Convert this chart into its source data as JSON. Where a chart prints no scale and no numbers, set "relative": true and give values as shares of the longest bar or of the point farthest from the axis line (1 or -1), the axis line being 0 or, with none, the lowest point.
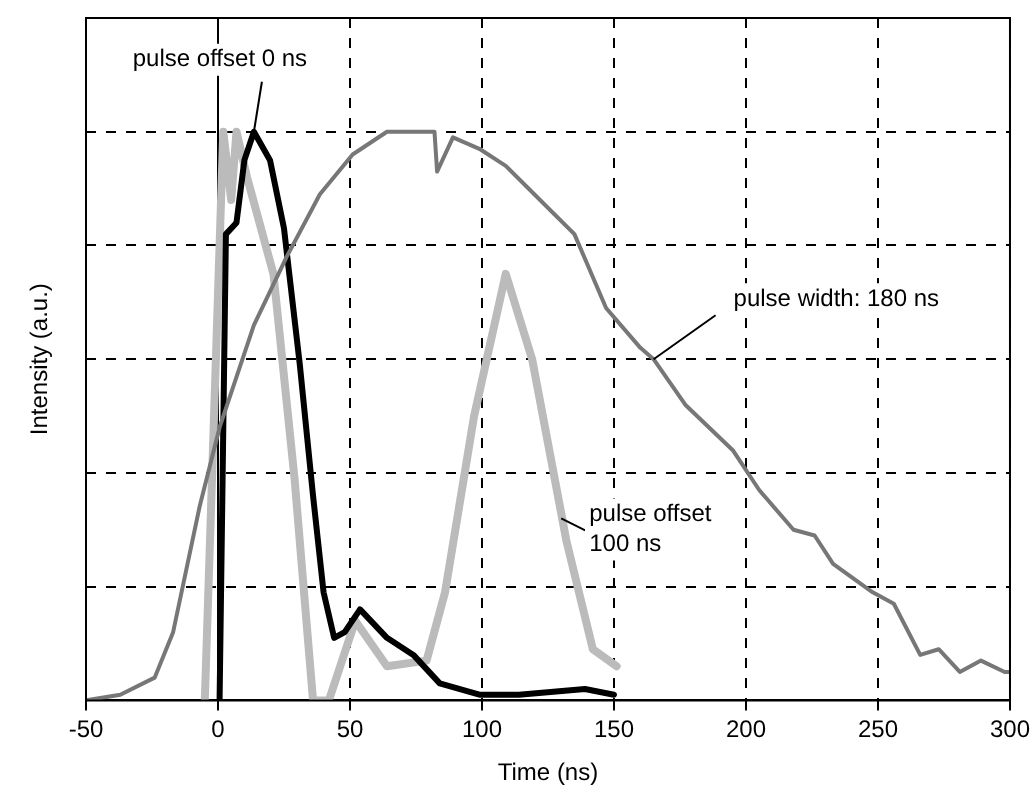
{
  "chart_data": {
    "type": "line",
    "xlabel": "Time (ns)",
    "ylabel": "Intensity (a.u.)",
    "relative": true,
    "xlim": [
      -50,
      300
    ],
    "xticks": [
      -50,
      0,
      50,
      100,
      150,
      200,
      250,
      300
    ],
    "grid": true,
    "marker": "none",
    "line_style": "solid",
    "series": [
      {
        "color": "#777777",
        "x": [
          -50,
          -37,
          -24,
          -17,
          -7,
          0.6,
          13.6,
          26,
          38.6,
          51,
          64,
          82,
          83,
          89,
          99,
          109,
          122,
          135,
          147,
          160,
          165,
          177,
          195,
          205,
          218,
          226,
          233,
          248,
          256,
          266,
          273,
          281,
          289,
          298,
          300
        ],
        "values": [
          0,
          0.01,
          0.04,
          0.12,
          0.34,
          0.48,
          0.66,
          0.78,
          0.89,
          0.96,
          1.0,
          1.0,
          0.93,
          0.99,
          0.97,
          0.94,
          0.88,
          0.82,
          0.69,
          0.62,
          0.6,
          0.52,
          0.44,
          0.37,
          0.3,
          0.29,
          0.24,
          0.19,
          0.17,
          0.08,
          0.09,
          0.05,
          0.07,
          0.05,
          0.05
        ]
      },
      {
        "color": "#000000",
        "x": [
          0.6,
          3,
          7,
          10,
          13.6,
          19.7,
          25,
          31,
          36,
          40,
          44,
          48,
          53.8,
          64,
          74,
          84,
          99,
          114,
          139,
          150
        ],
        "values": [
          0,
          0.82,
          0.84,
          0.95,
          1.0,
          0.95,
          0.83,
          0.59,
          0.36,
          0.19,
          0.11,
          0.12,
          0.16,
          0.11,
          0.08,
          0.03,
          0.01,
          0.01,
          0.02,
          0.01
        ]
      },
      {
        "color": "#bbbbbb",
        "x": [
          -5,
          2,
          5,
          7,
          11,
          21,
          29,
          36,
          42,
          52,
          64,
          79,
          86,
          97,
          109,
          119,
          132,
          142,
          151
        ],
        "values": [
          0,
          1.0,
          0.88,
          1.0,
          0.92,
          0.75,
          0.39,
          0,
          0,
          0.14,
          0.06,
          0.07,
          0.19,
          0.5,
          0.75,
          0.6,
          0.28,
          0.09,
          0.06
        ]
      }
    ],
    "annotations": [
      {
        "text": "pulse offset 0 ns",
        "x": 13.6,
        "y": 1.0
      },
      {
        "text": "pulse offset 100 ns",
        "x": 130,
        "y": 0.32
      },
      {
        "text": "pulse width: 180 ns",
        "x": 165,
        "y": 0.6
      }
    ]
  }
}
